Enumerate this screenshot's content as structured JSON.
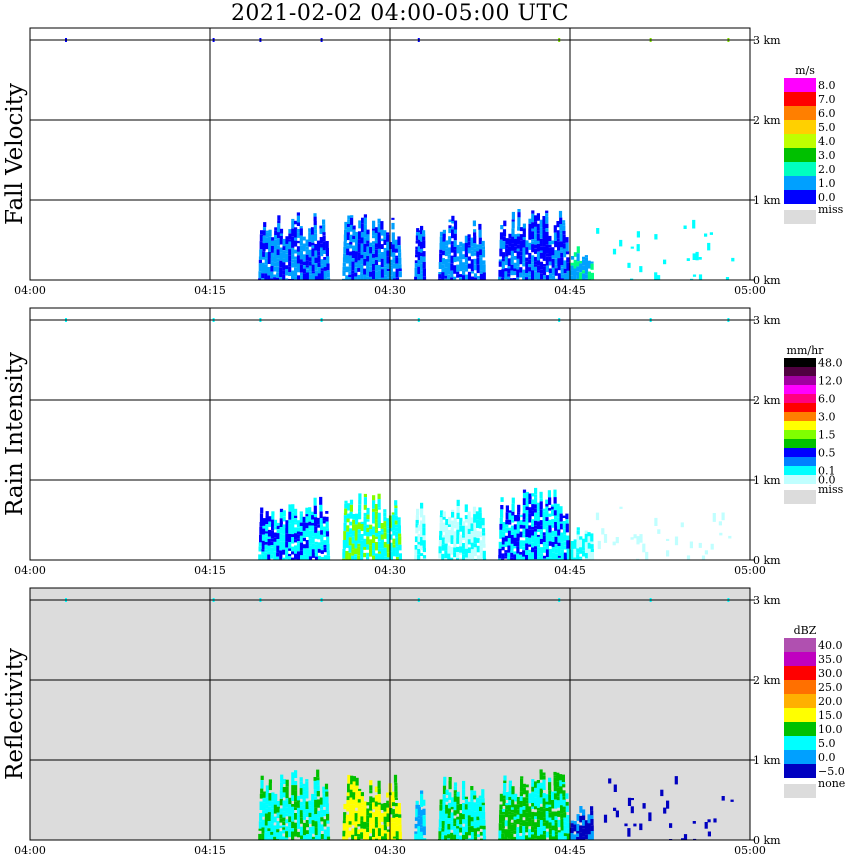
{
  "title": "2021-02-02   04:00-05:00 UTC",
  "x_ticks": [
    "04:00",
    "04:15",
    "04:30",
    "04:45",
    "05:00"
  ],
  "y_ticks": [
    "0 km",
    "1 km",
    "2 km",
    "3 km"
  ],
  "chart_data": [
    {
      "type": "heatmap",
      "title": "",
      "ylabel": "Fall Velocity",
      "xlabel": "",
      "xlim": [
        "04:00",
        "05:00"
      ],
      "ylim": [
        0,
        3
      ],
      "colorbar": {
        "unit": "m/s",
        "labels": [
          "8.0",
          "7.0",
          "6.0",
          "5.0",
          "4.0",
          "3.0",
          "2.0",
          "1.0",
          "0.0"
        ],
        "colors": [
          "#ff00ff",
          "#ff0000",
          "#ff7f00",
          "#ffd000",
          "#bfff00",
          "#00c000",
          "#00ffbf",
          "#00a0ff",
          "#0000ff"
        ],
        "missing_label": "miss",
        "missing_color": "#dcdcdc"
      },
      "background": "#ffffff",
      "echo_clusters": [
        {
          "start": "04:19",
          "end": "04:25",
          "top_km": 0.95,
          "dominant": "#00a0ff",
          "secondary": "#0000ff"
        },
        {
          "start": "04:26",
          "end": "04:31",
          "top_km": 0.88,
          "dominant": "#00a0ff",
          "secondary": "#0000ff"
        },
        {
          "start": "04:32",
          "end": "04:33",
          "top_km": 0.85,
          "dominant": "#00a0ff",
          "secondary": "#0000ff"
        },
        {
          "start": "04:34",
          "end": "04:38",
          "top_km": 0.85,
          "dominant": "#00a0ff",
          "secondary": "#0000ff"
        },
        {
          "start": "04:39",
          "end": "04:45",
          "top_km": 0.95,
          "dominant": "#0000ff",
          "secondary": "#00a0ff"
        },
        {
          "start": "04:45",
          "end": "04:47",
          "top_km": 0.45,
          "dominant": "#00a0ff",
          "secondary": "#00ff80"
        },
        {
          "start": "04:47",
          "end": "04:59",
          "top_km": 0.85,
          "dominant": "#00ffff",
          "secondary": "#0000ff"
        }
      ]
    },
    {
      "type": "heatmap",
      "title": "",
      "ylabel": "Rain Intensity",
      "xlabel": "",
      "xlim": [
        "04:00",
        "05:00"
      ],
      "ylim": [
        0,
        3
      ],
      "colorbar": {
        "unit": "mm/hr",
        "labels": [
          "48.0",
          "",
          "12.0",
          "",
          "6.0",
          "",
          "3.0",
          "",
          "1.5",
          "",
          "0.5",
          "",
          "0.1",
          "0.0"
        ],
        "colors": [
          "#000000",
          "#500040",
          "#a000a0",
          "#ff00ff",
          "#ff0080",
          "#ff0000",
          "#ff7f00",
          "#ffff00",
          "#80ff00",
          "#00c000",
          "#0000ff",
          "#0080ff",
          "#00ffff",
          "#c0ffff"
        ],
        "missing_label": "miss",
        "missing_color": "#dcdcdc"
      },
      "background": "#ffffff",
      "echo_clusters": [
        {
          "start": "04:19",
          "end": "04:25",
          "top_km": 0.85,
          "dominant": "#00ffff",
          "secondary": "#0000ff"
        },
        {
          "start": "04:26",
          "end": "04:31",
          "top_km": 0.88,
          "dominant": "#00ffff",
          "secondary": "#80ff00"
        },
        {
          "start": "04:32",
          "end": "04:33",
          "top_km": 0.85,
          "dominant": "#c0ffff",
          "secondary": "#00ffff"
        },
        {
          "start": "04:34",
          "end": "04:38",
          "top_km": 0.85,
          "dominant": "#c0ffff",
          "secondary": "#00ffff"
        },
        {
          "start": "04:39",
          "end": "04:45",
          "top_km": 0.95,
          "dominant": "#00ffff",
          "secondary": "#0000ff"
        },
        {
          "start": "04:45",
          "end": "04:47",
          "top_km": 0.45,
          "dominant": "#00ffff",
          "secondary": "#c0ffff"
        },
        {
          "start": "04:47",
          "end": "04:59",
          "top_km": 0.85,
          "dominant": "#c0ffff",
          "secondary": "#00ffff"
        }
      ]
    },
    {
      "type": "heatmap",
      "title": "",
      "ylabel": "Reflectivity",
      "xlabel": "",
      "xlim": [
        "04:00",
        "05:00"
      ],
      "ylim": [
        0,
        3
      ],
      "colorbar": {
        "unit": "dBZ",
        "labels": [
          "40.0",
          "35.0",
          "30.0",
          "25.0",
          "20.0",
          "15.0",
          "10.0",
          "5.0",
          "0.0",
          "−5.0"
        ],
        "colors": [
          "#b050b0",
          "#c000c0",
          "#ff0000",
          "#ff7000",
          "#ffb000",
          "#ffff00",
          "#00c000",
          "#00ffff",
          "#00a0ff",
          "#0000c0"
        ],
        "missing_label": "none",
        "missing_color": "#dcdcdc"
      },
      "background": "#dcdcdc",
      "echo_clusters": [
        {
          "start": "04:19",
          "end": "04:25",
          "top_km": 0.95,
          "dominant": "#00ffff",
          "secondary": "#00c000"
        },
        {
          "start": "04:26",
          "end": "04:31",
          "top_km": 0.88,
          "dominant": "#ffff00",
          "secondary": "#00c000"
        },
        {
          "start": "04:32",
          "end": "04:33",
          "top_km": 0.85,
          "dominant": "#00a0ff",
          "secondary": "#00ffff"
        },
        {
          "start": "04:34",
          "end": "04:38",
          "top_km": 0.85,
          "dominant": "#00ffff",
          "secondary": "#00c000"
        },
        {
          "start": "04:39",
          "end": "04:45",
          "top_km": 0.95,
          "dominant": "#00c000",
          "secondary": "#00ffff"
        },
        {
          "start": "04:45",
          "end": "04:47",
          "top_km": 0.45,
          "dominant": "#0000c0",
          "secondary": "#00a0ff"
        },
        {
          "start": "04:47",
          "end": "04:59",
          "top_km": 0.85,
          "dominant": "#0000c0",
          "secondary": "#00ffff"
        }
      ]
    }
  ]
}
